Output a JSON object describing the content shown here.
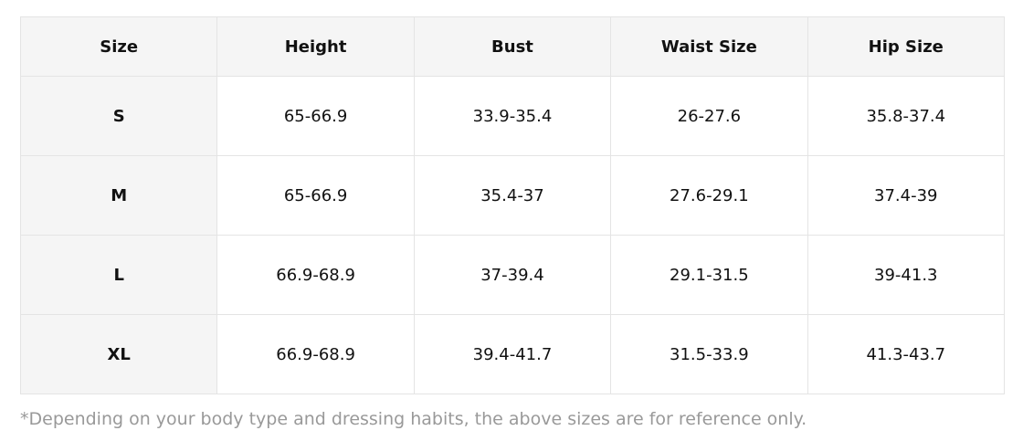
{
  "table": {
    "header": [
      "Size",
      "Height",
      "Bust",
      "Waist Size",
      "Hip Size"
    ],
    "rows": [
      [
        "S",
        "65-66.9",
        "33.9-35.4",
        "26-27.6",
        "35.8-37.4"
      ],
      [
        "M",
        "65-66.9",
        "35.4-37",
        "27.6-29.1",
        "37.4-39"
      ],
      [
        "L",
        "66.9-68.9",
        "37-39.4",
        "29.1-31.5",
        "39-41.3"
      ],
      [
        "XL",
        "66.9-68.9",
        "39.4-41.7",
        "31.5-33.9",
        "41.3-43.7"
      ]
    ]
  },
  "note": "*Depending on your body type and dressing habits, the above sizes are for reference only."
}
